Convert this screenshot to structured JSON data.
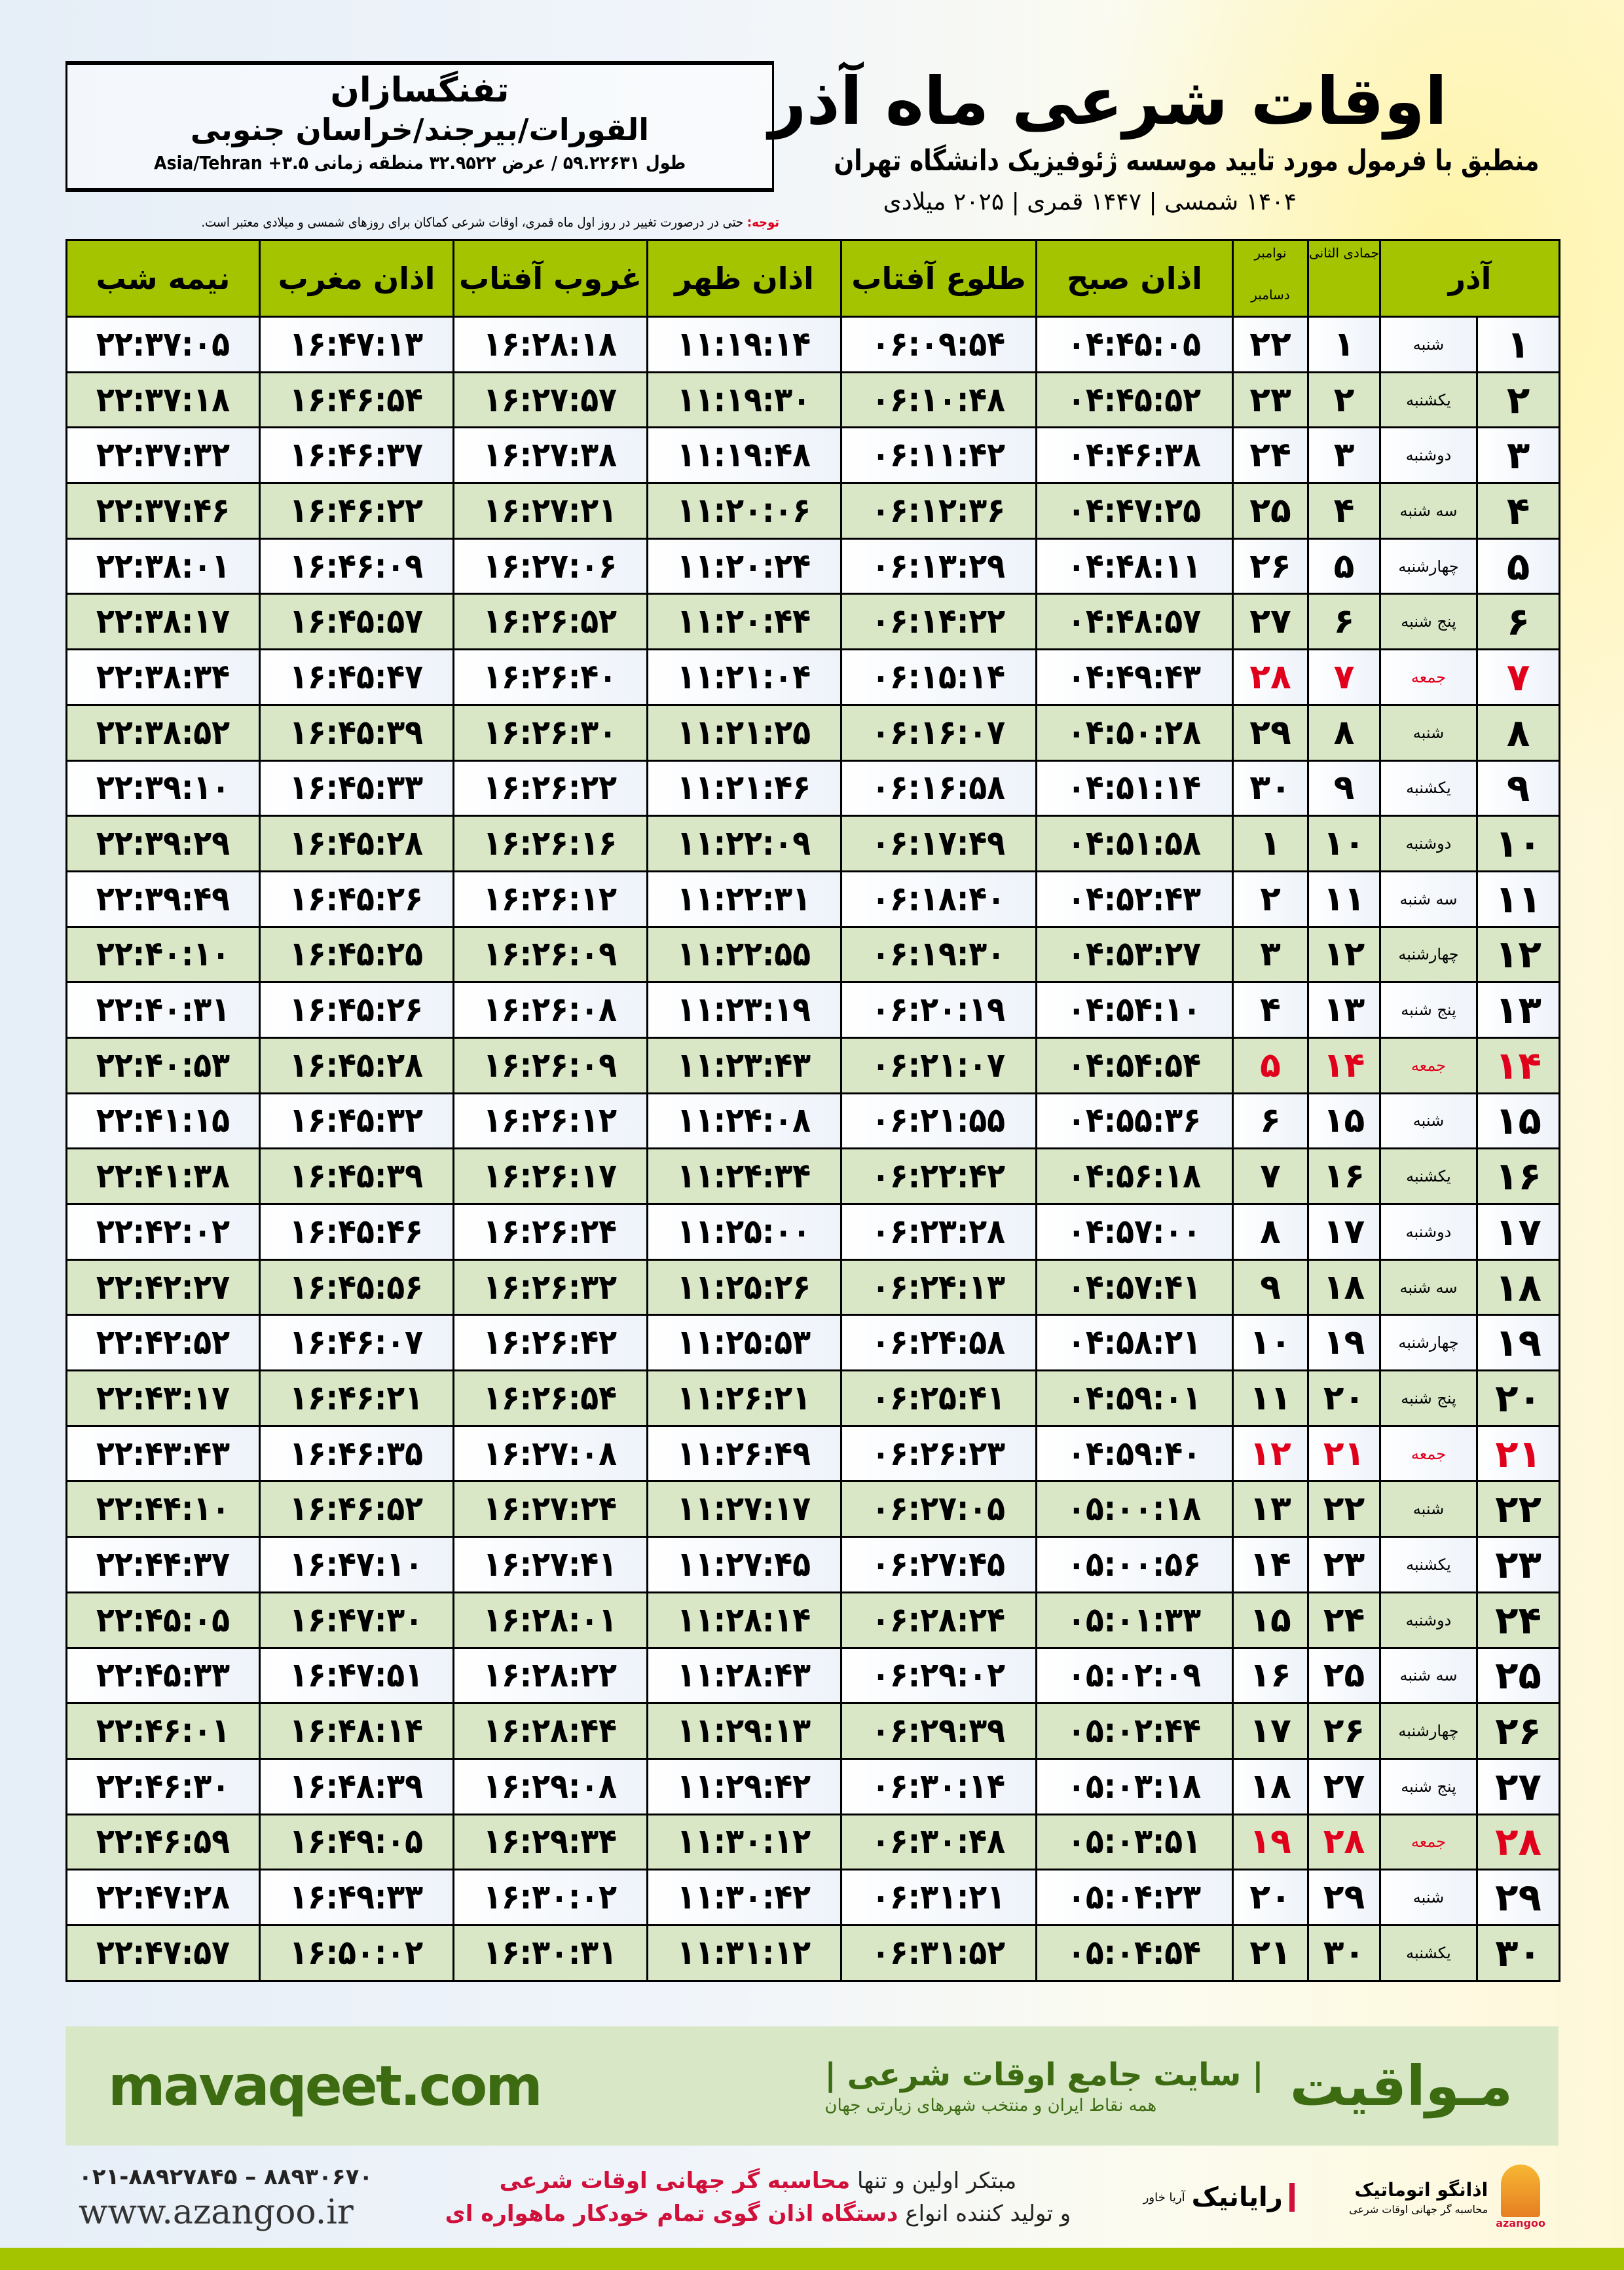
{
  "header": {
    "title": "اوقات شرعی ماه آذر",
    "subtitle": "منطبق با فرمول مورد تایید موسسه ژئوفیزیک دانشگاه تهران",
    "years": "۱۴۰۴ شمسی | ۱۴۴۷ قمری | ۲۰۲۵ میلادی",
    "city": "تفنگسازان",
    "region": "القورات/بیرجند/خراسان جنوبی",
    "coords": "طول ۵۹.۲۲۶۳۱ / عرض ۳۲.۹۵۲۲ منطقه زمانی ۳.۵+ Asia/Tehran",
    "note_label": "توجه:",
    "note_text": " حتی در درصورت تغییر در روز اول ماه قمری، اوقات شرعی کماکان برای روزهای شمسی و میلادی معتبر است."
  },
  "table": {
    "headers": {
      "azar": "آذر",
      "hijri": "جمادی الثانی",
      "gregorian_top": "نوامبر",
      "gregorian_bottom": "دسامبر",
      "fajr": "اذان صبح",
      "sunrise": "طلوع آفتاب",
      "dhuhr": "اذان ظهر",
      "sunset": "غروب آفتاب",
      "maghrib": "اذان مغرب",
      "midnight": "نیمه شب"
    },
    "holiday_color": "#e0001b",
    "header_color": "#a4c400",
    "rows": [
      [
        "۱",
        "شنبه",
        "۱",
        "۲۲",
        "۰۴:۴۵:۰۵",
        "۰۶:۰۹:۵۴",
        "۱۱:۱۹:۱۴",
        "۱۶:۲۸:۱۸",
        "۱۶:۴۷:۱۳",
        "۲۲:۳۷:۰۵",
        false
      ],
      [
        "۲",
        "یکشنبه",
        "۲",
        "۲۳",
        "۰۴:۴۵:۵۲",
        "۰۶:۱۰:۴۸",
        "۱۱:۱۹:۳۰",
        "۱۶:۲۷:۵۷",
        "۱۶:۴۶:۵۴",
        "۲۲:۳۷:۱۸",
        false
      ],
      [
        "۳",
        "دوشنبه",
        "۳",
        "۲۴",
        "۰۴:۴۶:۳۸",
        "۰۶:۱۱:۴۲",
        "۱۱:۱۹:۴۸",
        "۱۶:۲۷:۳۸",
        "۱۶:۴۶:۳۷",
        "۲۲:۳۷:۳۲",
        false
      ],
      [
        "۴",
        "سه شنبه",
        "۴",
        "۲۵",
        "۰۴:۴۷:۲۵",
        "۰۶:۱۲:۳۶",
        "۱۱:۲۰:۰۶",
        "۱۶:۲۷:۲۱",
        "۱۶:۴۶:۲۲",
        "۲۲:۳۷:۴۶",
        false
      ],
      [
        "۵",
        "چهارشنبه",
        "۵",
        "۲۶",
        "۰۴:۴۸:۱۱",
        "۰۶:۱۳:۲۹",
        "۱۱:۲۰:۲۴",
        "۱۶:۲۷:۰۶",
        "۱۶:۴۶:۰۹",
        "۲۲:۳۸:۰۱",
        false
      ],
      [
        "۶",
        "پنج شنبه",
        "۶",
        "۲۷",
        "۰۴:۴۸:۵۷",
        "۰۶:۱۴:۲۲",
        "۱۱:۲۰:۴۴",
        "۱۶:۲۶:۵۲",
        "۱۶:۴۵:۵۷",
        "۲۲:۳۸:۱۷",
        false
      ],
      [
        "۷",
        "جمعه",
        "۷",
        "۲۸",
        "۰۴:۴۹:۴۳",
        "۰۶:۱۵:۱۴",
        "۱۱:۲۱:۰۴",
        "۱۶:۲۶:۴۰",
        "۱۶:۴۵:۴۷",
        "۲۲:۳۸:۳۴",
        true
      ],
      [
        "۸",
        "شنبه",
        "۸",
        "۲۹",
        "۰۴:۵۰:۲۸",
        "۰۶:۱۶:۰۷",
        "۱۱:۲۱:۲۵",
        "۱۶:۲۶:۳۰",
        "۱۶:۴۵:۳۹",
        "۲۲:۳۸:۵۲",
        false
      ],
      [
        "۹",
        "یکشنبه",
        "۹",
        "۳۰",
        "۰۴:۵۱:۱۴",
        "۰۶:۱۶:۵۸",
        "۱۱:۲۱:۴۶",
        "۱۶:۲۶:۲۲",
        "۱۶:۴۵:۳۳",
        "۲۲:۳۹:۱۰",
        false
      ],
      [
        "۱۰",
        "دوشنبه",
        "۱۰",
        "۱",
        "۰۴:۵۱:۵۸",
        "۰۶:۱۷:۴۹",
        "۱۱:۲۲:۰۹",
        "۱۶:۲۶:۱۶",
        "۱۶:۴۵:۲۸",
        "۲۲:۳۹:۲۹",
        false
      ],
      [
        "۱۱",
        "سه شنبه",
        "۱۱",
        "۲",
        "۰۴:۵۲:۴۳",
        "۰۶:۱۸:۴۰",
        "۱۱:۲۲:۳۱",
        "۱۶:۲۶:۱۲",
        "۱۶:۴۵:۲۶",
        "۲۲:۳۹:۴۹",
        false
      ],
      [
        "۱۲",
        "چهارشنبه",
        "۱۲",
        "۳",
        "۰۴:۵۳:۲۷",
        "۰۶:۱۹:۳۰",
        "۱۱:۲۲:۵۵",
        "۱۶:۲۶:۰۹",
        "۱۶:۴۵:۲۵",
        "۲۲:۴۰:۱۰",
        false
      ],
      [
        "۱۳",
        "پنج شنبه",
        "۱۳",
        "۴",
        "۰۴:۵۴:۱۰",
        "۰۶:۲۰:۱۹",
        "۱۱:۲۳:۱۹",
        "۱۶:۲۶:۰۸",
        "۱۶:۴۵:۲۶",
        "۲۲:۴۰:۳۱",
        false
      ],
      [
        "۱۴",
        "جمعه",
        "۱۴",
        "۵",
        "۰۴:۵۴:۵۴",
        "۰۶:۲۱:۰۷",
        "۱۱:۲۳:۴۳",
        "۱۶:۲۶:۰۹",
        "۱۶:۴۵:۲۸",
        "۲۲:۴۰:۵۳",
        true
      ],
      [
        "۱۵",
        "شنبه",
        "۱۵",
        "۶",
        "۰۴:۵۵:۳۶",
        "۰۶:۲۱:۵۵",
        "۱۱:۲۴:۰۸",
        "۱۶:۲۶:۱۲",
        "۱۶:۴۵:۳۲",
        "۲۲:۴۱:۱۵",
        false
      ],
      [
        "۱۶",
        "یکشنبه",
        "۱۶",
        "۷",
        "۰۴:۵۶:۱۸",
        "۰۶:۲۲:۴۲",
        "۱۱:۲۴:۳۴",
        "۱۶:۲۶:۱۷",
        "۱۶:۴۵:۳۹",
        "۲۲:۴۱:۳۸",
        false
      ],
      [
        "۱۷",
        "دوشنبه",
        "۱۷",
        "۸",
        "۰۴:۵۷:۰۰",
        "۰۶:۲۳:۲۸",
        "۱۱:۲۵:۰۰",
        "۱۶:۲۶:۲۴",
        "۱۶:۴۵:۴۶",
        "۲۲:۴۲:۰۲",
        false
      ],
      [
        "۱۸",
        "سه شنبه",
        "۱۸",
        "۹",
        "۰۴:۵۷:۴۱",
        "۰۶:۲۴:۱۳",
        "۱۱:۲۵:۲۶",
        "۱۶:۲۶:۳۲",
        "۱۶:۴۵:۵۶",
        "۲۲:۴۲:۲۷",
        false
      ],
      [
        "۱۹",
        "چهارشنبه",
        "۱۹",
        "۱۰",
        "۰۴:۵۸:۲۱",
        "۰۶:۲۴:۵۸",
        "۱۱:۲۵:۵۳",
        "۱۶:۲۶:۴۲",
        "۱۶:۴۶:۰۷",
        "۲۲:۴۲:۵۲",
        false
      ],
      [
        "۲۰",
        "پنج شنبه",
        "۲۰",
        "۱۱",
        "۰۴:۵۹:۰۱",
        "۰۶:۲۵:۴۱",
        "۱۱:۲۶:۲۱",
        "۱۶:۲۶:۵۴",
        "۱۶:۴۶:۲۱",
        "۲۲:۴۳:۱۷",
        false
      ],
      [
        "۲۱",
        "جمعه",
        "۲۱",
        "۱۲",
        "۰۴:۵۹:۴۰",
        "۰۶:۲۶:۲۳",
        "۱۱:۲۶:۴۹",
        "۱۶:۲۷:۰۸",
        "۱۶:۴۶:۳۵",
        "۲۲:۴۳:۴۳",
        true
      ],
      [
        "۲۲",
        "شنبه",
        "۲۲",
        "۱۳",
        "۰۵:۰۰:۱۸",
        "۰۶:۲۷:۰۵",
        "۱۱:۲۷:۱۷",
        "۱۶:۲۷:۲۴",
        "۱۶:۴۶:۵۲",
        "۲۲:۴۴:۱۰",
        false
      ],
      [
        "۲۳",
        "یکشنبه",
        "۲۳",
        "۱۴",
        "۰۵:۰۰:۵۶",
        "۰۶:۲۷:۴۵",
        "۱۱:۲۷:۴۵",
        "۱۶:۲۷:۴۱",
        "۱۶:۴۷:۱۰",
        "۲۲:۴۴:۳۷",
        false
      ],
      [
        "۲۴",
        "دوشنبه",
        "۲۴",
        "۱۵",
        "۰۵:۰۱:۳۳",
        "۰۶:۲۸:۲۴",
        "۱۱:۲۸:۱۴",
        "۱۶:۲۸:۰۱",
        "۱۶:۴۷:۳۰",
        "۲۲:۴۵:۰۵",
        false
      ],
      [
        "۲۵",
        "سه شنبه",
        "۲۵",
        "۱۶",
        "۰۵:۰۲:۰۹",
        "۰۶:۲۹:۰۲",
        "۱۱:۲۸:۴۳",
        "۱۶:۲۸:۲۲",
        "۱۶:۴۷:۵۱",
        "۲۲:۴۵:۳۳",
        false
      ],
      [
        "۲۶",
        "چهارشنبه",
        "۲۶",
        "۱۷",
        "۰۵:۰۲:۴۴",
        "۰۶:۲۹:۳۹",
        "۱۱:۲۹:۱۳",
        "۱۶:۲۸:۴۴",
        "۱۶:۴۸:۱۴",
        "۲۲:۴۶:۰۱",
        false
      ],
      [
        "۲۷",
        "پنج شنبه",
        "۲۷",
        "۱۸",
        "۰۵:۰۳:۱۸",
        "۰۶:۳۰:۱۴",
        "۱۱:۲۹:۴۲",
        "۱۶:۲۹:۰۸",
        "۱۶:۴۸:۳۹",
        "۲۲:۴۶:۳۰",
        false
      ],
      [
        "۲۸",
        "جمعه",
        "۲۸",
        "۱۹",
        "۰۵:۰۳:۵۱",
        "۰۶:۳۰:۴۸",
        "۱۱:۳۰:۱۲",
        "۱۶:۲۹:۳۴",
        "۱۶:۴۹:۰۵",
        "۲۲:۴۶:۵۹",
        true
      ],
      [
        "۲۹",
        "شنبه",
        "۲۹",
        "۲۰",
        "۰۵:۰۴:۲۳",
        "۰۶:۳۱:۲۱",
        "۱۱:۳۰:۴۲",
        "۱۶:۳۰:۰۲",
        "۱۶:۴۹:۳۳",
        "۲۲:۴۷:۲۸",
        false
      ],
      [
        "۳۰",
        "یکشنبه",
        "۳۰",
        "۲۱",
        "۰۵:۰۴:۵۴",
        "۰۶:۳۱:۵۲",
        "۱۱:۳۱:۱۲",
        "۱۶:۳۰:۳۱",
        "۱۶:۵۰:۰۲",
        "۲۲:۴۷:۵۷",
        false
      ]
    ]
  },
  "banner": {
    "brand": "مـواقیت",
    "tagline": "| سایت جامع اوقات شرعی |",
    "subtag": "همه نقاط ایران و منتخب شهرهای زیارتی جهان",
    "site": "mavaqeet.com",
    "color": "#3d6b12"
  },
  "footer": {
    "phone": "۰۲۱-۸۸۹۲۷۸۴۵ – ۸۸۹۳۰۶۷۰",
    "web": "www.azangoo.ir",
    "promo1_a": "مبتکر اولین و تنها ",
    "promo1_b": "محاسبه گر جهانی اوقات شرعی",
    "promo2_a": "و تولید کننده انواع ",
    "promo2_b": "دستگاه اذان گوی تمام خودکار ماهواره ای",
    "logo_rayanik": "رایانیک",
    "logo_rayanik_sub": "آریا خاور",
    "logo_azangoo": "اذانگو اتوماتیک",
    "logo_azangoo_sub": "محاسبه گر جهانی اوقات شرعی",
    "logo_azangoo_latin": "azangoo"
  }
}
